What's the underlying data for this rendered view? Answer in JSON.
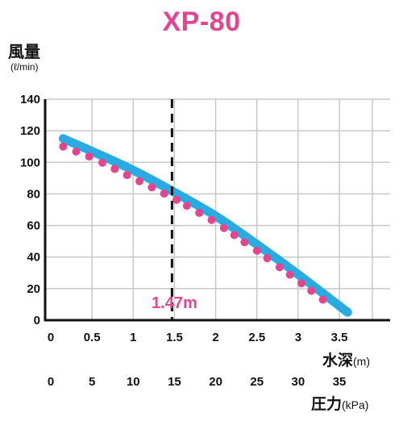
{
  "chart_data": {
    "type": "line",
    "title": "XP-80",
    "ylabel": "風量",
    "yunit": "(ℓ/min)",
    "x_primary_label": "水深",
    "x_primary_unit": "(m)",
    "x_secondary_label": "圧力",
    "x_secondary_unit": "(kPa)",
    "ylim": [
      0,
      140
    ],
    "xlim": [
      0,
      3.9
    ],
    "y_ticks": [
      "0",
      "20",
      "40",
      "60",
      "80",
      "100",
      "120",
      "140"
    ],
    "x_ticks": [
      "0",
      "0.5",
      "1",
      "1.5",
      "2",
      "2.5",
      "3",
      "3.5"
    ],
    "x_ticks_secondary": [
      "0",
      "5",
      "10",
      "15",
      "20",
      "25",
      "30",
      "35"
    ],
    "grid": true,
    "marker": {
      "x": 1.47,
      "label": "1.47m",
      "color": "#e4458f"
    },
    "series": [
      {
        "style": "solid",
        "color": "#29abe2",
        "x": [
          0.15,
          0.5,
          1.0,
          1.5,
          2.0,
          2.5,
          3.0,
          3.6
        ],
        "y": [
          115,
          107,
          95,
          81,
          66,
          48,
          29,
          5
        ]
      },
      {
        "style": "dotted",
        "color": "#e4458f",
        "x": [
          0.15,
          0.5,
          1.0,
          1.5,
          2.0,
          2.5,
          3.0,
          3.4
        ],
        "y": [
          110,
          103,
          90,
          77,
          62,
          44,
          25,
          9
        ]
      }
    ]
  }
}
